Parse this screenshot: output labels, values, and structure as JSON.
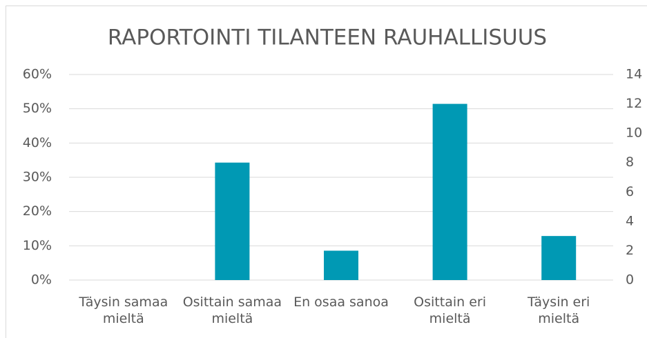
{
  "chart_data": {
    "type": "bar",
    "title": "RAPORTOINTI TILANTEEN RAUHALLISUUS",
    "categories": [
      "Täysin samaa mieltä",
      "Osittain samaa mieltä",
      "En osaa sanoa",
      "Osittain eri mieltä",
      "Täysin eri mieltä"
    ],
    "series": [
      {
        "color": "#0099b4",
        "axis": "y2",
        "values": [
          0,
          8,
          2,
          12,
          3
        ]
      }
    ],
    "ylim": [
      0,
      60
    ],
    "yticks": [
      {
        "value": 0,
        "label": "0%"
      },
      {
        "value": 10,
        "label": "10%"
      },
      {
        "value": 20,
        "label": "20%"
      },
      {
        "value": 30,
        "label": "30%"
      },
      {
        "value": 40,
        "label": "40%"
      },
      {
        "value": 50,
        "label": "50%"
      },
      {
        "value": 60,
        "label": "60%"
      }
    ],
    "y2lim": [
      0,
      14
    ],
    "y2ticks": [
      0,
      2,
      4,
      6,
      8,
      10,
      12,
      14
    ],
    "grid": true
  }
}
